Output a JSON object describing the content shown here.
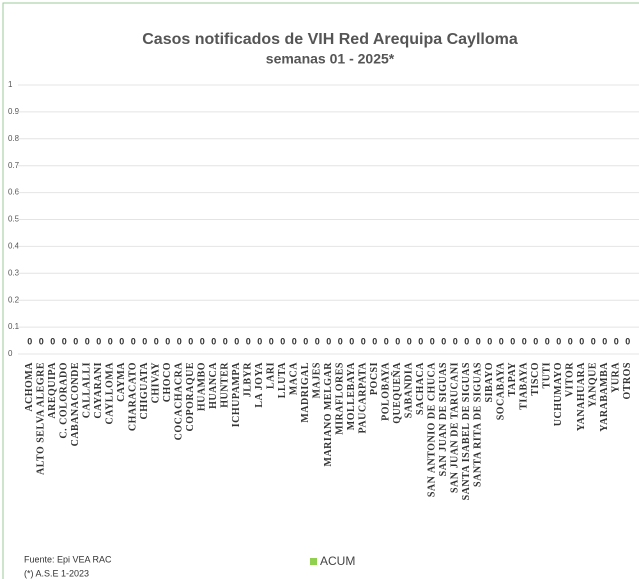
{
  "chart_data": {
    "type": "bar",
    "title": "Casos notificados de VIH Red Arequipa Caylloma",
    "subtitle": "semanas 01 - 2025*",
    "categories": [
      "ACHOMA",
      "ALTO SELVA ALEGRE",
      "AREQUIPA",
      "C. COLORADO",
      "CABANACONDE",
      "CALLALLI",
      "CAYARANI",
      "CAYLLOMA",
      "CAYMA",
      "CHARACATO",
      "CHIGUATA",
      "CHIVAY",
      "CHOCO",
      "COCACHACRA",
      "COPORAQUE",
      "HUAMBO",
      "HUANCA",
      "HUNTER",
      "ICHUPAMPA",
      "JLBYR",
      "LA JOYA",
      "LARI",
      "LLUTA",
      "MACA",
      "MADRIGAL",
      "MAJES",
      "MARIANO MELGAR",
      "MIRAFLORES",
      "MOLLEBAYA",
      "PAUCARPATA",
      "POCSI",
      "POLOBAYA",
      "QUEQUEÑA",
      "SABANDIA",
      "SACHACA",
      "SAN ANTONIO DE CHUCA",
      "SAN JUAN DE SIGUAS",
      "SAN JUAN DE TARUCANI",
      "SANTA ISABEL DE SIGUAS",
      "SANTA RITA DE SIGUAS",
      "SIBAYO",
      "SOCABAYA",
      "TAPAY",
      "TIABAYA",
      "TISCO",
      "TUTI",
      "UCHUMAYO",
      "VITOR",
      "YANAHUARA",
      "YANQUE",
      "YARABAMBA",
      "YURA",
      "OTROS"
    ],
    "series": [
      {
        "name": "ACUM",
        "color": "#8fd14f",
        "values": [
          0,
          0,
          0,
          0,
          0,
          0,
          0,
          0,
          0,
          0,
          0,
          0,
          0,
          0,
          0,
          0,
          0,
          0,
          0,
          0,
          0,
          0,
          0,
          0,
          0,
          0,
          0,
          0,
          0,
          0,
          0,
          0,
          0,
          0,
          0,
          0,
          0,
          0,
          0,
          0,
          0,
          0,
          0,
          0,
          0,
          0,
          0,
          0,
          0,
          0,
          0,
          0,
          0
        ]
      }
    ],
    "ylim": [
      0,
      1
    ],
    "yticks": [
      0,
      0.1,
      0.2,
      0.3,
      0.4,
      0.5,
      0.6,
      0.7,
      0.8,
      0.9,
      1
    ],
    "grid": true,
    "legend": "bottom",
    "footnotes": [
      "Fuente: Epi VEA RAC",
      "(*) A.S.E 1-2023"
    ]
  }
}
